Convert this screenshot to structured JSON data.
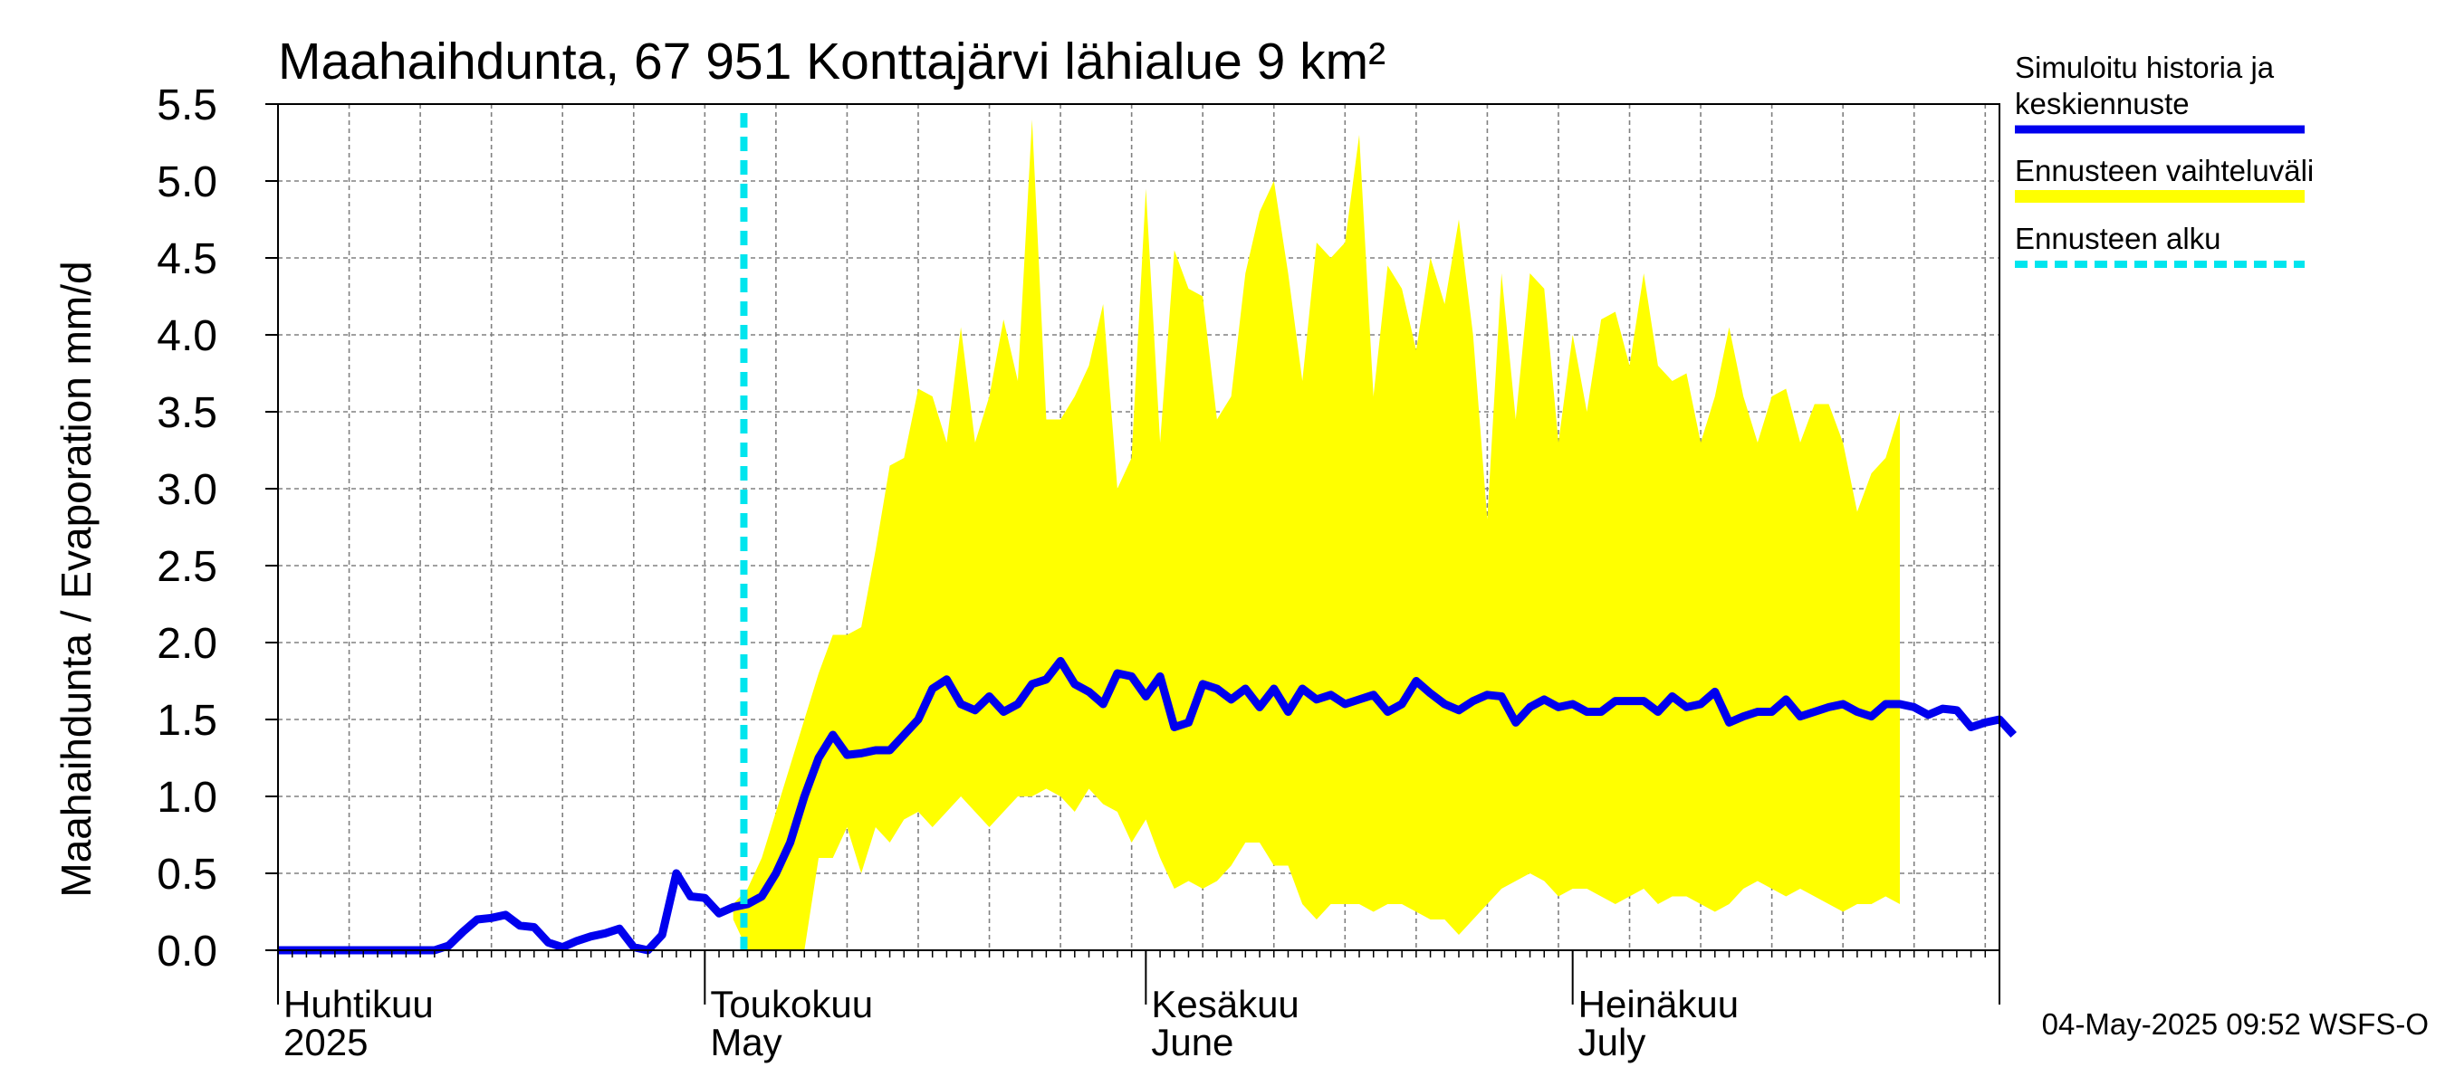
{
  "chart_data": {
    "type": "area",
    "title": "Maahaihdunta, 67 951 Konttajärvi lähialue 9 km²",
    "ylabel": "Maahaihdunta / Evaporation   mm/d",
    "ylim": [
      0,
      5.5
    ],
    "y_ticks": [
      "0.0",
      "0.5",
      "1.0",
      "1.5",
      "2.0",
      "2.5",
      "3.0",
      "3.5",
      "4.0",
      "4.5",
      "5.0",
      "5.5"
    ],
    "x_range": [
      "2025-04-01",
      "2025-07-31"
    ],
    "grid": true,
    "months": [
      {
        "date": "2025-04-01",
        "fi": "Huhtikuu",
        "en": "2025"
      },
      {
        "date": "2025-05-01",
        "fi": "Toukokuu",
        "en": "May"
      },
      {
        "date": "2025-06-01",
        "fi": "Kesäkuu",
        "en": "June"
      },
      {
        "date": "2025-07-01",
        "fi": "Heinäkuu",
        "en": "July"
      }
    ],
    "forecast_start": "2025-05-04",
    "series": [
      {
        "name": "Simuloitu historia ja keskiennuste",
        "color": "#0000ee",
        "values": [
          0,
          0,
          0,
          0,
          0,
          0,
          0,
          0,
          0,
          0,
          0,
          0,
          0.03,
          0.12,
          0.2,
          0.21,
          0.23,
          0.16,
          0.15,
          0.05,
          0.02,
          0.06,
          0.09,
          0.11,
          0.14,
          0.02,
          0.0,
          0.1,
          0.5,
          0.35,
          0.34,
          0.24,
          0.28,
          0.3,
          0.35,
          0.5,
          0.7,
          1.0,
          1.25,
          1.4,
          1.27,
          1.28,
          1.3,
          1.3,
          1.4,
          1.5,
          1.7,
          1.76,
          1.6,
          1.56,
          1.65,
          1.55,
          1.6,
          1.73,
          1.76,
          1.88,
          1.73,
          1.68,
          1.6,
          1.8,
          1.78,
          1.65,
          1.78,
          1.45,
          1.48,
          1.73,
          1.7,
          1.63,
          1.7,
          1.58,
          1.7,
          1.55,
          1.7,
          1.63,
          1.66,
          1.6,
          1.63,
          1.66,
          1.55,
          1.6,
          1.75,
          1.67,
          1.6,
          1.56,
          1.62,
          1.66,
          1.65,
          1.48,
          1.58,
          1.63,
          1.58,
          1.6,
          1.55,
          1.55,
          1.62,
          1.62,
          1.62,
          1.55,
          1.65,
          1.58,
          1.6,
          1.68,
          1.48,
          1.52,
          1.55,
          1.55,
          1.63,
          1.52,
          1.55,
          1.58,
          1.6,
          1.55,
          1.52,
          1.6,
          1.6,
          1.58,
          1.53,
          1.57,
          1.56,
          1.45,
          1.48,
          1.5,
          1.4
        ]
      },
      {
        "name": "Ennusteen vaihteluväli",
        "color": "#ffff00",
        "start": "2025-05-03",
        "upper": [
          0.3,
          0.4,
          0.6,
          0.9,
          1.2,
          1.5,
          1.8,
          2.05,
          2.05,
          2.1,
          2.6,
          3.15,
          3.2,
          3.65,
          3.6,
          3.3,
          4.05,
          3.3,
          3.6,
          4.1,
          3.7,
          5.4,
          3.45,
          3.45,
          3.6,
          3.8,
          4.2,
          3.0,
          3.2,
          4.95,
          3.3,
          4.55,
          4.3,
          4.25,
          3.45,
          3.6,
          4.4,
          4.8,
          5.0,
          4.4,
          3.7,
          4.6,
          4.5,
          4.6,
          5.3,
          3.6,
          4.45,
          4.3,
          3.9,
          4.5,
          4.2,
          4.75,
          4.0,
          2.8,
          4.4,
          3.45,
          4.4,
          4.3,
          3.3,
          4.0,
          3.5,
          4.1,
          4.15,
          3.8,
          4.4,
          3.8,
          3.7,
          3.75,
          3.3,
          3.6,
          4.05,
          3.6,
          3.3,
          3.6,
          3.65,
          3.3,
          3.55,
          3.55,
          3.3,
          2.85,
          3.1,
          3.2,
          3.5
        ],
        "lower": [
          0.2,
          0.0,
          0.0,
          0.0,
          0.0,
          0.0,
          0.6,
          0.6,
          0.8,
          0.5,
          0.8,
          0.7,
          0.85,
          0.9,
          0.8,
          0.9,
          1.0,
          0.9,
          0.8,
          0.9,
          1.0,
          1.0,
          1.05,
          1.0,
          0.9,
          1.05,
          0.95,
          0.9,
          0.7,
          0.85,
          0.6,
          0.4,
          0.45,
          0.4,
          0.45,
          0.55,
          0.7,
          0.7,
          0.55,
          0.55,
          0.3,
          0.2,
          0.3,
          0.3,
          0.3,
          0.25,
          0.3,
          0.3,
          0.25,
          0.2,
          0.2,
          0.1,
          0.2,
          0.3,
          0.4,
          0.45,
          0.5,
          0.45,
          0.35,
          0.4,
          0.4,
          0.35,
          0.3,
          0.35,
          0.4,
          0.3,
          0.35,
          0.35,
          0.3,
          0.25,
          0.3,
          0.4,
          0.45,
          0.4,
          0.35,
          0.4,
          0.35,
          0.3,
          0.25,
          0.3,
          0.3,
          0.35,
          0.3
        ]
      }
    ],
    "legend": [
      {
        "lines": [
          "Simuloitu historia ja",
          "keskiennuste"
        ],
        "color": "#0000ee",
        "style": "solid"
      },
      {
        "lines": [
          "Ennusteen vaihteluväli"
        ],
        "color": "#ffff00",
        "style": "solid"
      },
      {
        "lines": [
          "Ennusteen alku"
        ],
        "color": "#00e5ee",
        "style": "dashed"
      }
    ],
    "footer": "04-May-2025 09:52 WSFS-O"
  }
}
